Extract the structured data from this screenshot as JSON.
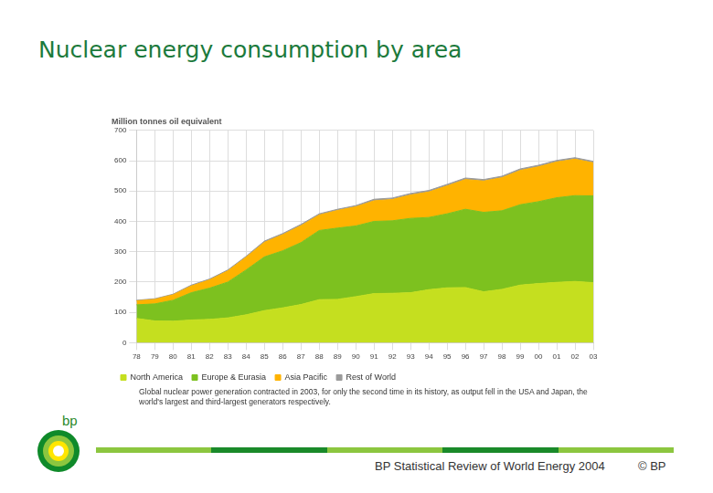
{
  "page": {
    "title": "Nuclear energy consumption by area",
    "logo": "bp",
    "footer": "BP Statistical Review of World Energy 2004",
    "copyright": "© BP"
  },
  "chart_data": {
    "type": "area",
    "title": "Million tonnes oil equivalent",
    "note": "Global nuclear power generation contracted in 2003, for only the second time in its history, as output fell in the USA and Japan, the world's largest and third-largest generators respectively.",
    "categories": [
      "78",
      "79",
      "80",
      "81",
      "82",
      "83",
      "84",
      "85",
      "86",
      "87",
      "88",
      "89",
      "90",
      "91",
      "92",
      "93",
      "94",
      "95",
      "96",
      "97",
      "98",
      "99",
      "00",
      "01",
      "02",
      "03"
    ],
    "series": [
      {
        "name": "North America",
        "color": "#c5df1f",
        "values": [
          80,
          72,
          71,
          75,
          77,
          82,
          92,
          106,
          115,
          126,
          142,
          143,
          152,
          162,
          163,
          165,
          175,
          181,
          182,
          168,
          176,
          190,
          195,
          199,
          202,
          198
        ]
      },
      {
        "name": "Europe & Eurasia",
        "color": "#7dc11f",
        "values": [
          45,
          56,
          69,
          90,
          103,
          118,
          148,
          177,
          188,
          204,
          228,
          235,
          233,
          238,
          239,
          245,
          238,
          244,
          258,
          262,
          259,
          265,
          270,
          279,
          283,
          286
        ]
      },
      {
        "name": "Asia Pacific",
        "color": "#ffb300",
        "values": [
          13,
          15,
          18,
          22,
          27,
          37,
          42,
          48,
          53,
          56,
          51,
          58,
          63,
          68,
          70,
          77,
          84,
          92,
          98,
          103,
          109,
          113,
          115,
          118,
          120,
          109
        ]
      },
      {
        "name": "Rest of World",
        "color": "#9a9a9a",
        "values": [
          2,
          2,
          2,
          3,
          3,
          3,
          3,
          4,
          4,
          4,
          4,
          4,
          4,
          5,
          5,
          5,
          5,
          5,
          5,
          5,
          5,
          5,
          5,
          5,
          5,
          5
        ]
      }
    ],
    "ylim": [
      0,
      700
    ],
    "yticks": [
      0,
      100,
      200,
      300,
      400,
      500,
      600,
      700
    ],
    "stacked": true,
    "grid": true,
    "legend": "bottom"
  }
}
